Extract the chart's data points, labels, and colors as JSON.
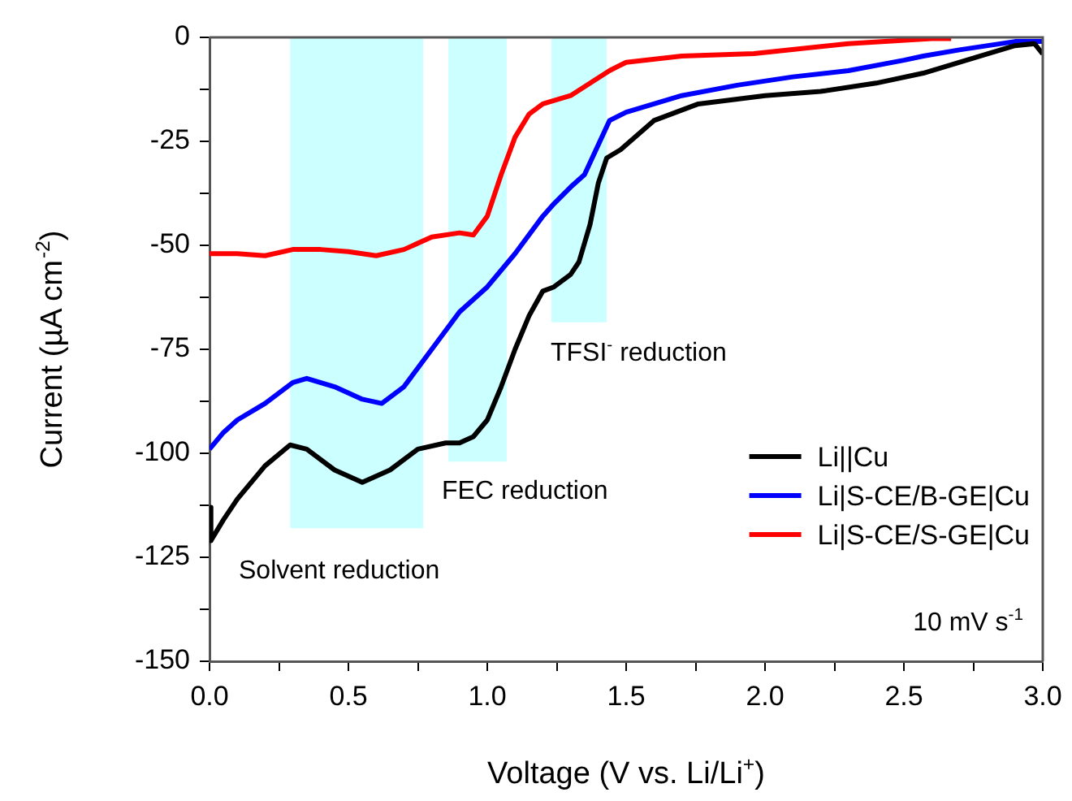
{
  "chart_data": {
    "type": "line",
    "xlabel": "Voltage (V vs. Li/Li$^{+}$)",
    "ylabel": "Current (µA cm$^{-2}$)",
    "xlim": [
      0,
      3
    ],
    "ylim": [
      -150,
      0
    ],
    "xticks": [
      {
        "value": 0,
        "label": "0.0"
      },
      {
        "value": 0.25,
        "label": null
      },
      {
        "value": 0.5,
        "label": "0.5"
      },
      {
        "value": 0.75,
        "label": null
      },
      {
        "value": 1,
        "label": "1.0"
      },
      {
        "value": 1.25,
        "label": null
      },
      {
        "value": 1.5,
        "label": "1.5"
      },
      {
        "value": 1.75,
        "label": null
      },
      {
        "value": 2,
        "label": "2.0"
      },
      {
        "value": 2.25,
        "label": null
      },
      {
        "value": 2.5,
        "label": "2.5"
      },
      {
        "value": 2.75,
        "label": null
      },
      {
        "value": 3,
        "label": "3.0"
      }
    ],
    "yticks": [
      {
        "value": -150,
        "label": "-150"
      },
      {
        "value": -137.5,
        "label": null
      },
      {
        "value": -125,
        "label": "-125"
      },
      {
        "value": -112.5,
        "label": null
      },
      {
        "value": -100,
        "label": "-100"
      },
      {
        "value": -87.5,
        "label": null
      },
      {
        "value": -75,
        "label": "-75"
      },
      {
        "value": -62.5,
        "label": null
      },
      {
        "value": -50,
        "label": "-50"
      },
      {
        "value": -37.5,
        "label": null
      },
      {
        "value": -25,
        "label": "-25"
      },
      {
        "value": -12.5,
        "label": null
      },
      {
        "value": 0,
        "label": "0"
      }
    ],
    "grid": false,
    "legend": "bottom right",
    "marker": "none",
    "line_style": "solid",
    "series": [
      {
        "type": "area",
        "color": "#ccffff",
        "x": [
          0.29,
          0.77
        ],
        "values": [
          -118,
          -118
        ]
      },
      {
        "type": "area",
        "color": "#ccffff",
        "x": [
          0.86,
          1.07
        ],
        "values": [
          -102,
          -102
        ]
      },
      {
        "type": "area",
        "color": "#ccffff",
        "x": [
          1.23,
          1.43
        ],
        "values": [
          -68.5,
          -68.5
        ]
      },
      {
        "name": "Li||Cu",
        "color": "#000000",
        "x": [
          0,
          0.005,
          0.05,
          0.1,
          0.2,
          0.29,
          0.35,
          0.45,
          0.55,
          0.65,
          0.75,
          0.85,
          0.9,
          0.95,
          1.0,
          1.05,
          1.1,
          1.15,
          1.2,
          1.24,
          1.3,
          1.33,
          1.37,
          1.4,
          1.43,
          1.48,
          1.6,
          1.76,
          2.0,
          2.2,
          2.4,
          2.57,
          2.8,
          2.9,
          2.97,
          3.0
        ],
        "values": [
          -113,
          -121,
          -116,
          -111,
          -103,
          -98,
          -99,
          -104,
          -107,
          -104,
          -99,
          -97.5,
          -97.5,
          -96,
          -92,
          -84,
          -75,
          -67,
          -61,
          -60,
          -57,
          -54,
          -45,
          -35,
          -29,
          -27,
          -20,
          -16,
          -14,
          -13,
          -11,
          -8.6,
          -4,
          -2,
          -1.5,
          -4
        ]
      },
      {
        "name": "Li|S-CE/B-GE|Cu",
        "color": "#0000ff",
        "x": [
          0,
          0.05,
          0.1,
          0.2,
          0.3,
          0.35,
          0.45,
          0.55,
          0.62,
          0.7,
          0.8,
          0.9,
          1.0,
          1.1,
          1.2,
          1.24,
          1.3,
          1.35,
          1.44,
          1.5,
          1.7,
          1.9,
          2.1,
          2.3,
          2.5,
          2.57,
          2.7,
          2.9,
          3.0
        ],
        "values": [
          -99,
          -95,
          -92,
          -88,
          -83,
          -82,
          -84,
          -87,
          -88,
          -84,
          -75,
          -66,
          -60,
          -52,
          -43,
          -40,
          -36,
          -33,
          -20,
          -18,
          -14,
          -11.5,
          -9.5,
          -8,
          -5.5,
          -4.5,
          -3,
          -1,
          -1
        ]
      },
      {
        "name": "Li|S-CE/S-GE|Cu",
        "color": "#ff0000",
        "x": [
          0,
          0.1,
          0.2,
          0.3,
          0.4,
          0.5,
          0.6,
          0.7,
          0.8,
          0.9,
          0.95,
          1.0,
          1.05,
          1.1,
          1.15,
          1.2,
          1.3,
          1.44,
          1.5,
          1.7,
          1.96,
          2.3,
          2.6,
          2.67
        ],
        "values": [
          -52,
          -52,
          -52.5,
          -51,
          -51,
          -51.5,
          -52.5,
          -51,
          -48,
          -47,
          -47.5,
          -43,
          -33,
          -24,
          -18.5,
          -16,
          -14,
          -8,
          -6,
          -4.5,
          -3.9,
          -1.5,
          -0.3,
          -0.3
        ]
      }
    ],
    "annotations": [
      "Solvent reduction",
      "FEC reduction",
      "TFSI$^{-}$ reduction",
      "10 mV s$^{-1}$"
    ]
  }
}
